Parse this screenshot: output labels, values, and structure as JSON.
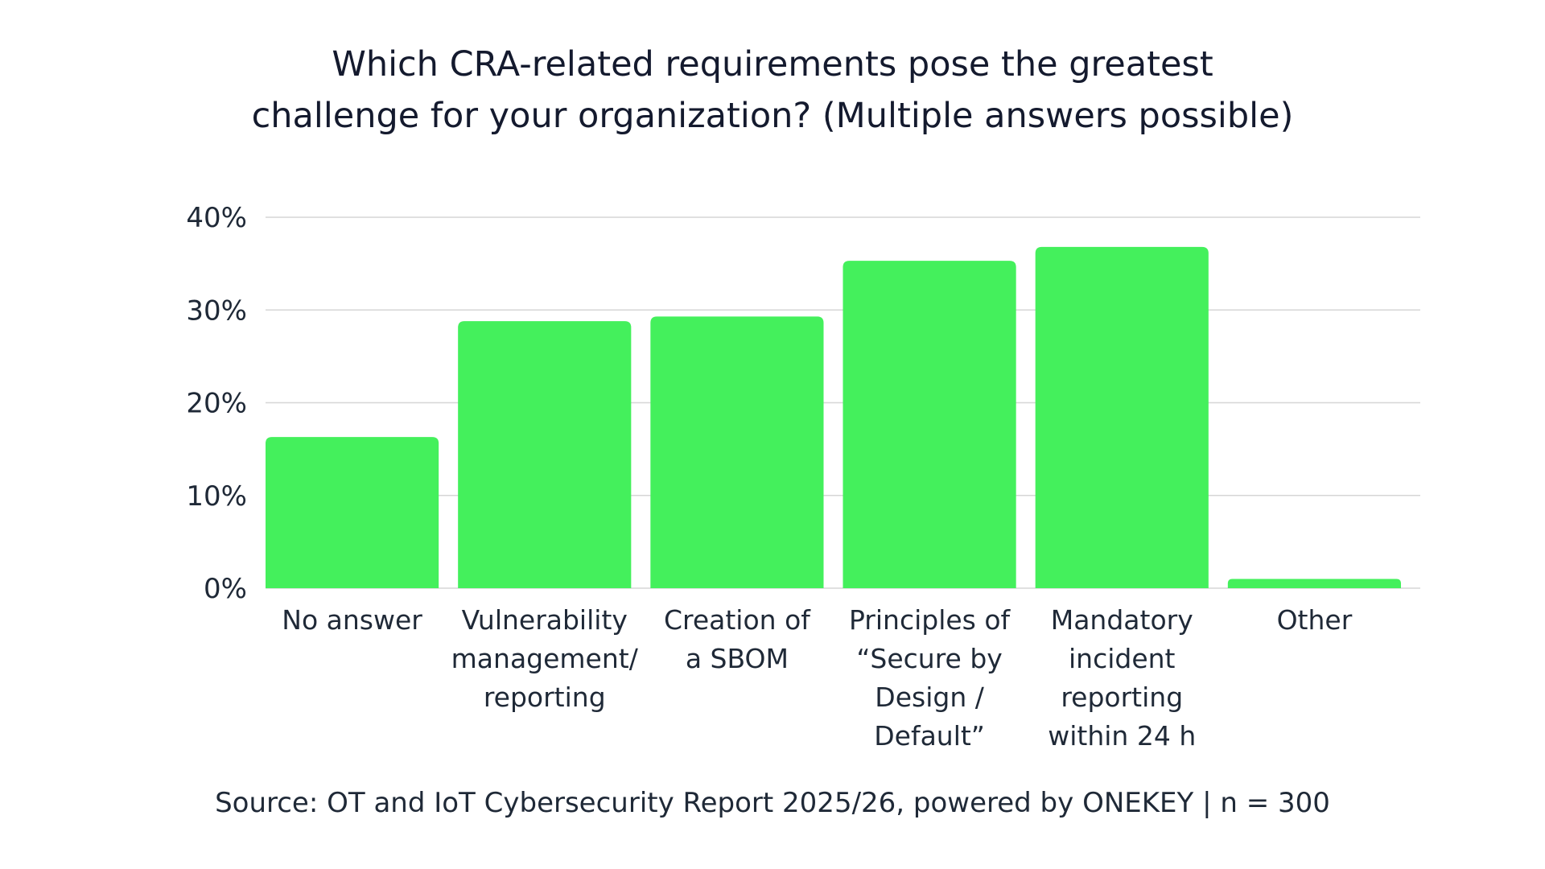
{
  "chart_data": {
    "type": "bar",
    "title_lines": [
      "Which CRA-related requirements pose the greatest",
      "challenge for your organization? (Multiple answers possible)"
    ],
    "categories": [
      [
        "No answer"
      ],
      [
        "Vulnerability",
        "management/",
        "reporting"
      ],
      [
        "Creation of",
        "a SBOM"
      ],
      [
        "Principles of",
        "“Secure by",
        "Design /",
        "Default”"
      ],
      [
        "Mandatory",
        "incident",
        "reporting",
        "within 24 h"
      ],
      [
        "Other"
      ]
    ],
    "values": [
      16.3,
      28.8,
      29.3,
      35.3,
      36.8,
      1.0
    ],
    "ylim": [
      0,
      40
    ],
    "yticks": [
      0,
      10,
      20,
      30,
      40
    ],
    "ytick_labels": [
      "0%",
      "10%",
      "20%",
      "30%",
      "40%"
    ],
    "grid": true,
    "xlabel": "",
    "ylabel": "",
    "colors": {
      "bar": "#44f05c",
      "grid": "#d6d6d6",
      "text": "#1f2937"
    }
  },
  "source": "Source: OT and IoT Cybersecurity Report 2025/26, powered by ONEKEY | n = 300"
}
